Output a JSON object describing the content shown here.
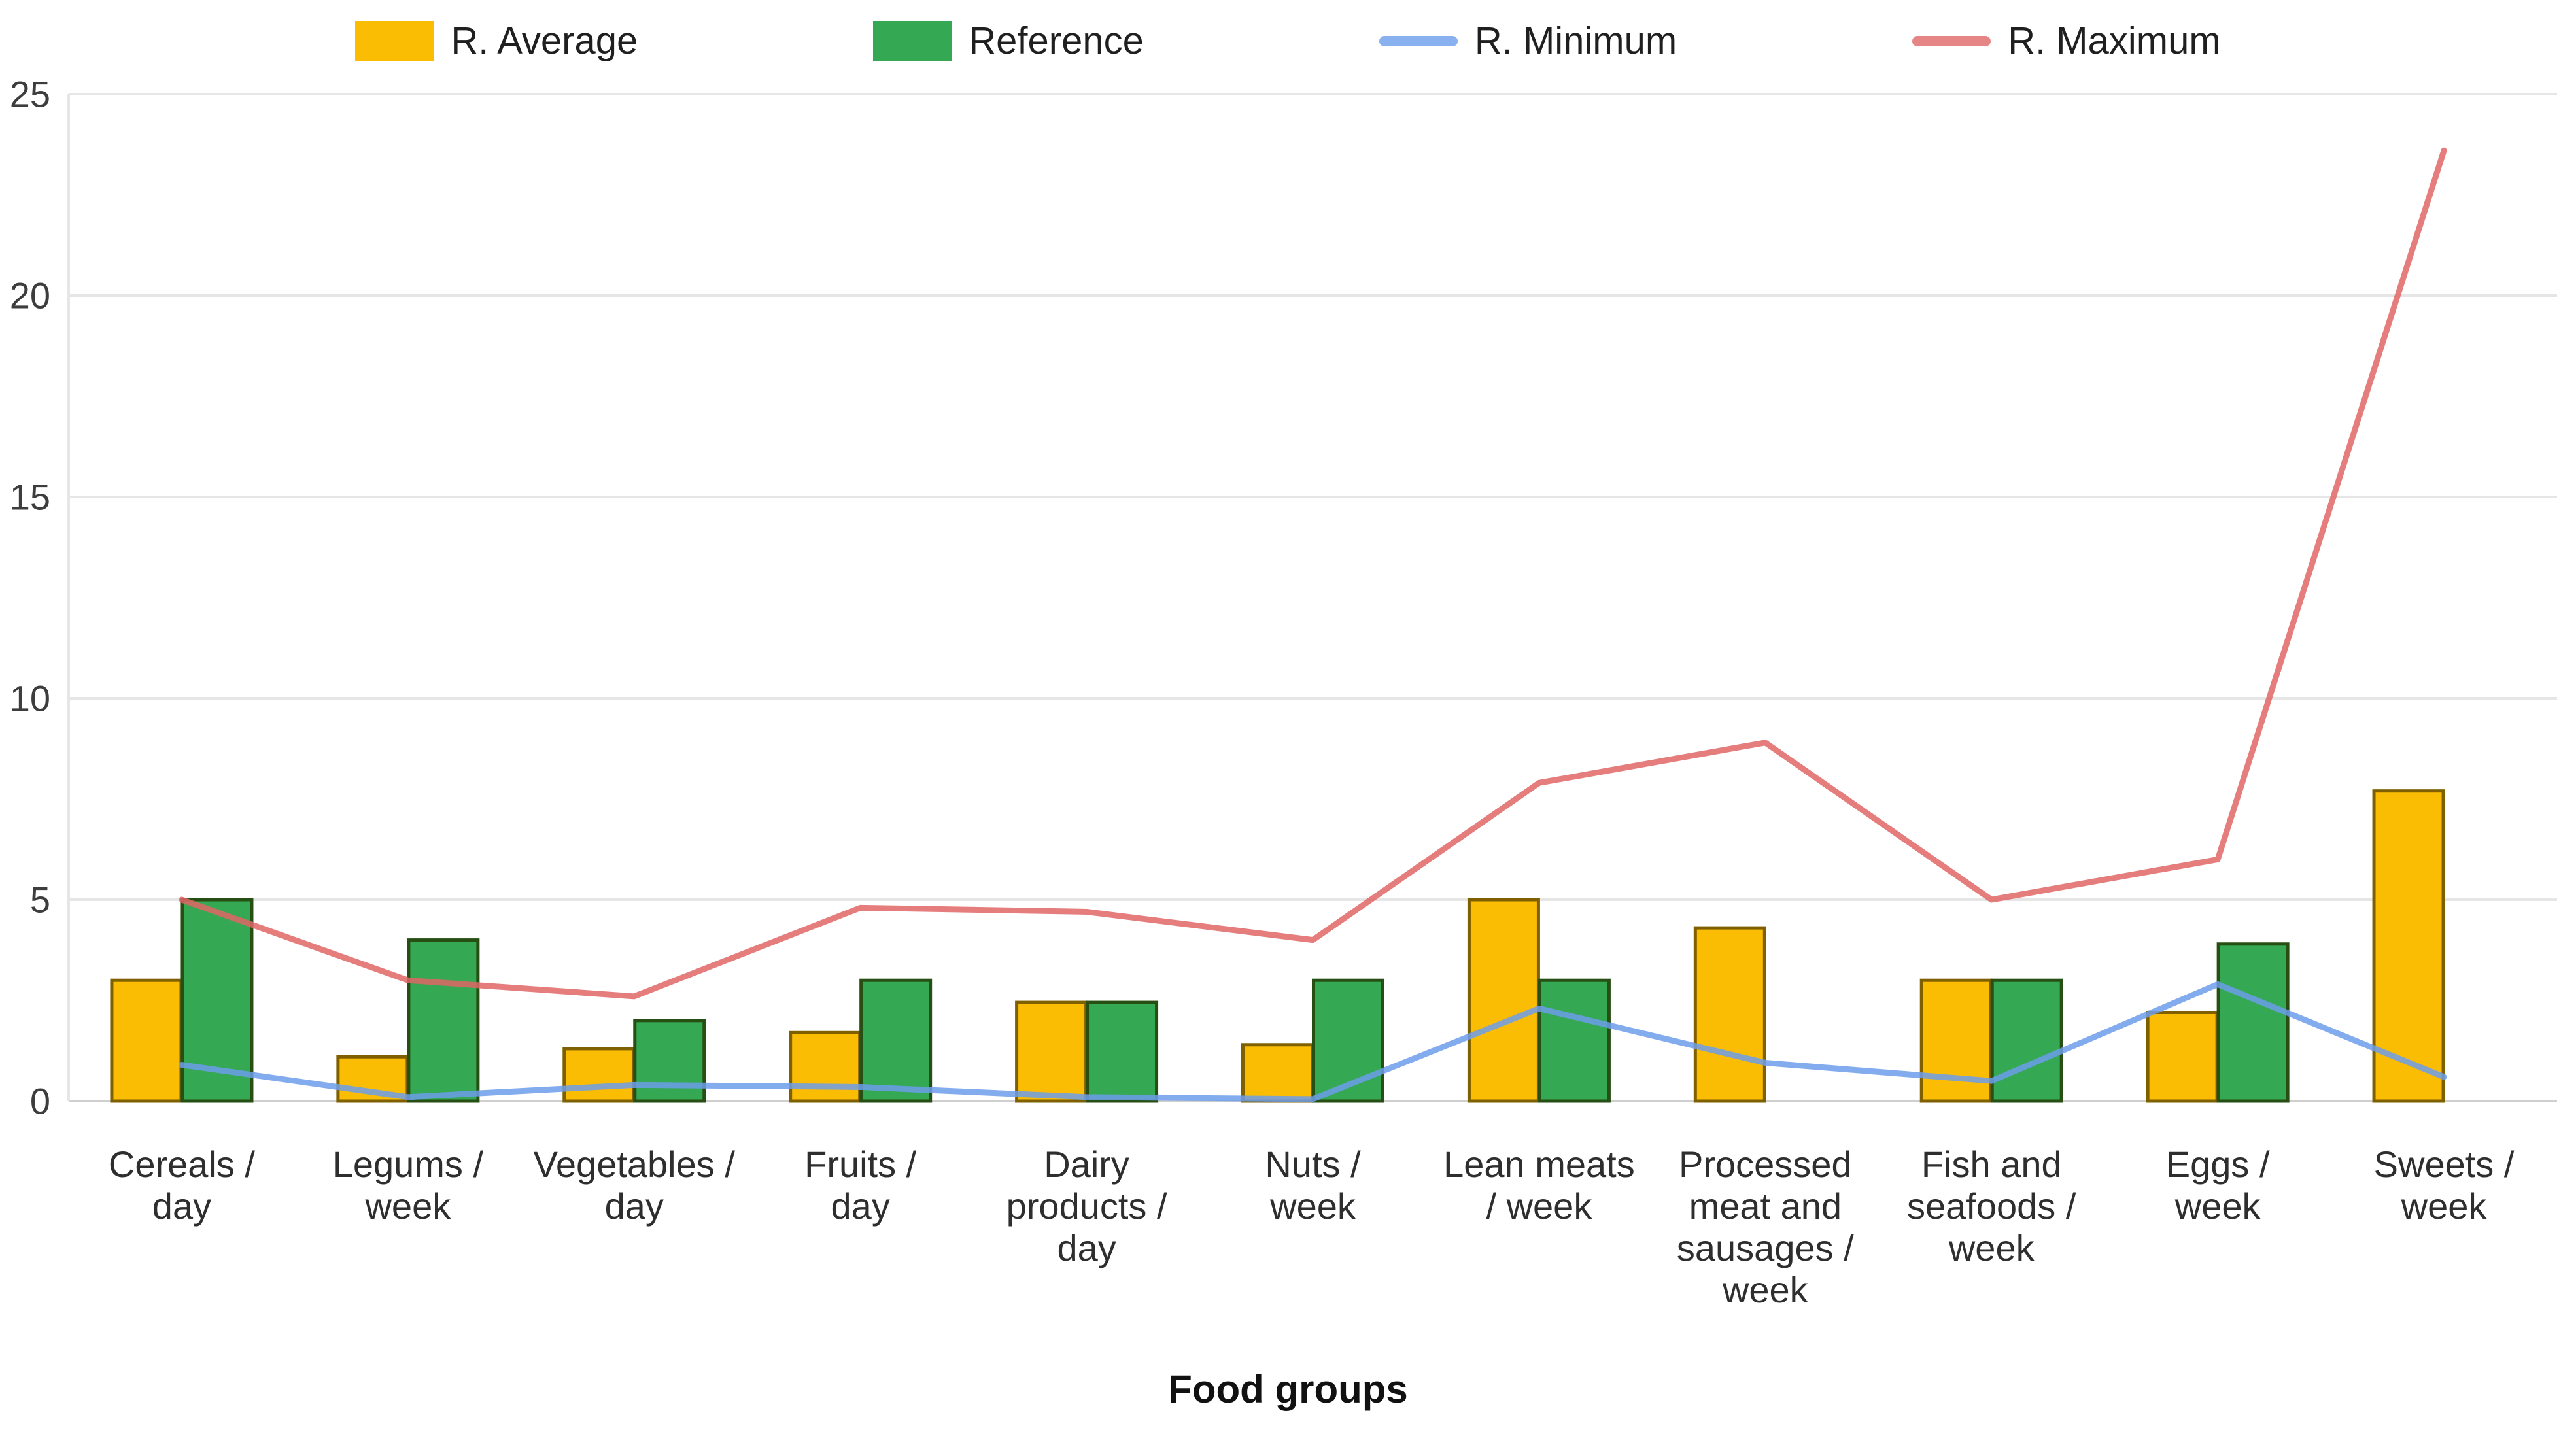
{
  "chart_data": {
    "type": "bar+line",
    "title": "",
    "xlabel": "Food groups",
    "ylabel": "",
    "grid": true,
    "legend_position": "top",
    "y_axis": {
      "min": 0,
      "max": 25,
      "ticks": [
        0,
        5,
        10,
        15,
        20,
        25
      ]
    },
    "categories": [
      "Cereals / day",
      "Legums / week",
      "Vegetables / day",
      "Fruits / day",
      "Dairy products / day",
      "Nuts / week",
      "Lean meats / week",
      "Processed meat and sausages / week",
      "Fish and seafoods / week",
      "Eggs / week",
      "Sweets / week"
    ],
    "category_label_lines": [
      [
        "Cereals /",
        "day"
      ],
      [
        "Legums /",
        "week"
      ],
      [
        "Vegetables /",
        "day"
      ],
      [
        "Fruits /",
        "day"
      ],
      [
        "Dairy",
        "products /",
        "day"
      ],
      [
        "Nuts /",
        "week"
      ],
      [
        "Lean meats",
        "/ week"
      ],
      [
        "Processed",
        "meat and",
        "sausages /",
        "week"
      ],
      [
        "Fish and",
        "seafoods /",
        "week"
      ],
      [
        "Eggs /",
        "week"
      ],
      [
        "Sweets /",
        "week"
      ]
    ],
    "series": [
      {
        "name": "R. Average",
        "type": "bar",
        "color": "#FBBC04",
        "stroke": "#7F6000",
        "values": [
          3.0,
          1.1,
          1.3,
          1.7,
          2.45,
          1.4,
          5.0,
          4.3,
          3.0,
          2.2,
          7.7
        ]
      },
      {
        "name": "Reference",
        "type": "bar",
        "color": "#34A853",
        "stroke": "#274E13",
        "values": [
          5.0,
          4.0,
          2.0,
          3.0,
          2.45,
          3.0,
          3.0,
          0,
          3.0,
          3.9,
          0
        ]
      },
      {
        "name": "R. Minimum",
        "type": "line",
        "color": "#6D9EEB",
        "values": [
          0.9,
          0.1,
          0.4,
          0.35,
          0.1,
          0.05,
          2.3,
          0.95,
          0.5,
          2.9,
          0.6
        ]
      },
      {
        "name": "R. Maximum",
        "type": "line",
        "color": "#E06666",
        "values": [
          5.0,
          3.0,
          2.6,
          4.8,
          4.7,
          4.0,
          7.9,
          8.9,
          5.0,
          6.0,
          23.6
        ]
      }
    ],
    "gridline_color": "#e6e6e6",
    "axis_line_color": "#cfcfcf"
  }
}
